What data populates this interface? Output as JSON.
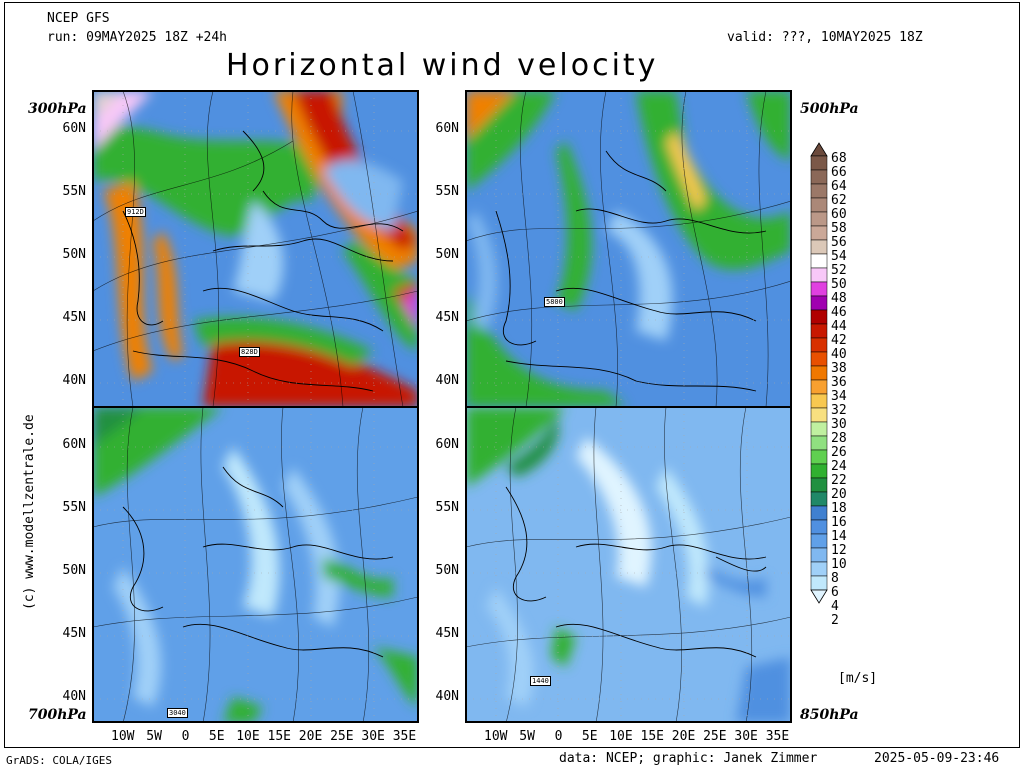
{
  "header": {
    "model": "NCEP GFS",
    "run": "run: 09MAY2025 18Z +24h",
    "valid": "valid: ???, 10MAY2025 18Z",
    "title": "Horizontal wind velocity"
  },
  "panels": {
    "p300": {
      "label": "300hPa",
      "box": "912D",
      "box2": "828D"
    },
    "p500": {
      "label": "500hPa",
      "box": "5800"
    },
    "p700": {
      "label": "700hPa",
      "box": "3040"
    },
    "p850": {
      "label": "850hPa",
      "box": "1440"
    }
  },
  "lat_labels": [
    "60N",
    "55N",
    "50N",
    "45N",
    "40N"
  ],
  "lon_labels": [
    "10W",
    "5W",
    "0",
    "5E",
    "10E",
    "15E",
    "20E",
    "25E",
    "30E",
    "35E"
  ],
  "colorbar": {
    "unit": "[m/s]",
    "ticks": [
      "68",
      "66",
      "64",
      "62",
      "60",
      "58",
      "56",
      "54",
      "52",
      "50",
      "48",
      "46",
      "44",
      "42",
      "40",
      "38",
      "36",
      "34",
      "32",
      "30",
      "28",
      "26",
      "24",
      "22",
      "20",
      "18",
      "16",
      "14",
      "12",
      "10",
      "8",
      "6",
      "4",
      "2"
    ],
    "colors": [
      "#6b4a3c",
      "#7b5848",
      "#8b6858",
      "#9b7868",
      "#ab8878",
      "#bb9888",
      "#cba898",
      "#dbc8b8",
      "#ffffff",
      "#f8c8f8",
      "#e040e0",
      "#a000b0",
      "#b00000",
      "#c81800",
      "#d83000",
      "#e85000",
      "#f07800",
      "#f8a030",
      "#f8c850",
      "#f8e080",
      "#c0f0a0",
      "#90e080",
      "#60d050",
      "#30b030",
      "#209040",
      "#208868",
      "#4080d0",
      "#5090e0",
      "#60a0e8",
      "#80b8f0",
      "#a0d0f8",
      "#c0e8fc",
      "#e0f4ff"
    ]
  },
  "footer": {
    "grads": "GrADS: COLA/IGES",
    "credit": "data: NCEP; graphic: Janek Zimmer",
    "timestamp": "2025-05-09-23:46",
    "website": "(c) www.modellzentrale.de"
  }
}
